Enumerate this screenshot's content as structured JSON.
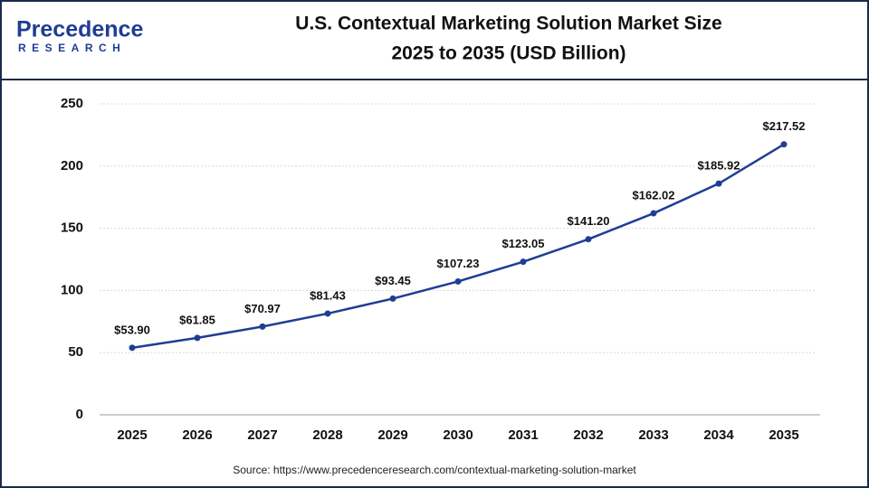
{
  "logo": {
    "name": "Precedence",
    "tagline": "RESEARCH"
  },
  "chart_data": {
    "type": "line",
    "title": [
      "U.S. Contextual Marketing Solution Market  Size",
      "2025 to 2035 (USD Billion)"
    ],
    "categories": [
      "2025",
      "2026",
      "2027",
      "2028",
      "2029",
      "2030",
      "2031",
      "2032",
      "2033",
      "2034",
      "2035"
    ],
    "values": [
      53.9,
      61.85,
      70.97,
      81.43,
      93.45,
      107.23,
      123.05,
      141.2,
      162.02,
      185.92,
      217.52
    ],
    "value_labels": [
      "$53.90",
      "$61.85",
      "$70.97",
      "$81.43",
      "$93.45",
      "$107.23",
      "$123.05",
      "$141.20",
      "$162.02",
      "$185.92",
      "$217.52"
    ],
    "color": "#1f3d94",
    "ylim": [
      0,
      250
    ],
    "yticks": [
      0,
      50,
      100,
      150,
      200,
      250
    ],
    "grid": true,
    "source": "Source: https://www.precedenceresearch.com/contextual-marketing-solution-market"
  }
}
